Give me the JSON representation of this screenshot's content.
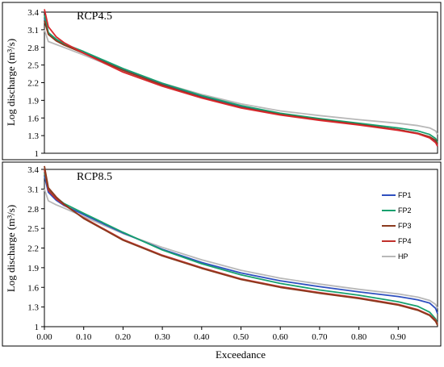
{
  "chart_data": [
    {
      "type": "line",
      "title": "RCP4.5",
      "xlabel": "",
      "ylabel": "Log discharge  (m³/s)",
      "xlim": [
        0,
        1
      ],
      "ylim": [
        1,
        3.4
      ],
      "yticks": [
        "1",
        "1.3",
        "1.6",
        "1.9",
        "2.2",
        "2.5",
        "2.8",
        "3.1",
        "3.4"
      ],
      "x": [
        0,
        0.01,
        0.03,
        0.05,
        0.1,
        0.2,
        0.3,
        0.4,
        0.5,
        0.6,
        0.7,
        0.8,
        0.9,
        0.95,
        0.98,
        0.995,
        1.0
      ],
      "series": [
        {
          "values": [
            3.3,
            3.05,
            2.93,
            2.85,
            2.71,
            2.42,
            2.17,
            1.96,
            1.79,
            1.66,
            1.57,
            1.49,
            1.4,
            1.34,
            1.27,
            1.2,
            1.13
          ],
          "color": "#2e4fbf"
        },
        {
          "values": [
            3.35,
            3.05,
            2.94,
            2.86,
            2.73,
            2.44,
            2.19,
            1.98,
            1.81,
            1.68,
            1.59,
            1.51,
            1.43,
            1.38,
            1.32,
            1.25,
            1.18
          ],
          "color": "#18a06e"
        },
        {
          "values": [
            3.45,
            3.15,
            2.98,
            2.88,
            2.7,
            2.38,
            2.14,
            1.94,
            1.77,
            1.65,
            1.56,
            1.48,
            1.39,
            1.33,
            1.26,
            1.18,
            1.12
          ],
          "color": "#d9282d"
        },
        {
          "values": [
            3.25,
            3.02,
            2.91,
            2.84,
            2.7,
            2.41,
            2.16,
            1.95,
            1.78,
            1.66,
            1.57,
            1.49,
            1.4,
            1.34,
            1.28,
            1.22,
            1.15
          ],
          "color": "#8b3a1e"
        },
        {
          "values": [
            3.1,
            2.9,
            2.85,
            2.8,
            2.67,
            2.4,
            2.19,
            2.0,
            1.84,
            1.72,
            1.64,
            1.57,
            1.51,
            1.47,
            1.43,
            1.38,
            1.32
          ],
          "color": "#b8b8b8"
        }
      ]
    },
    {
      "type": "line",
      "title": "RCP8.5",
      "xlabel": "Exceedance",
      "ylabel": "Log discharge  (m³/s)",
      "xlim": [
        0,
        1
      ],
      "ylim": [
        1,
        3.4
      ],
      "yticks": [
        "1",
        "1.3",
        "1.6",
        "1.9",
        "2.2",
        "2.5",
        "2.8",
        "3.1",
        "3.4"
      ],
      "xticks": [
        "0.00",
        "0.10",
        "0.20",
        "0.30",
        "0.40",
        "0.50",
        "0.60",
        "0.70",
        "0.80",
        "0.90"
      ],
      "legend_position": "right",
      "x": [
        0,
        0.01,
        0.03,
        0.05,
        0.1,
        0.2,
        0.3,
        0.4,
        0.5,
        0.6,
        0.7,
        0.8,
        0.9,
        0.95,
        0.98,
        0.995,
        1.0
      ],
      "series": [
        {
          "name": "FP1",
          "values": [
            3.3,
            3.05,
            2.93,
            2.85,
            2.71,
            2.43,
            2.18,
            1.98,
            1.82,
            1.7,
            1.61,
            1.53,
            1.46,
            1.41,
            1.36,
            1.28,
            1.2
          ],
          "color": "#2e4fbf"
        },
        {
          "name": "FP2",
          "values": [
            3.35,
            3.1,
            2.97,
            2.88,
            2.73,
            2.44,
            2.17,
            1.96,
            1.79,
            1.66,
            1.56,
            1.48,
            1.38,
            1.31,
            1.22,
            1.12,
            1.05
          ],
          "color": "#18a06e"
        },
        {
          "name": "FP3",
          "values": [
            3.45,
            3.12,
            2.98,
            2.87,
            2.65,
            2.32,
            2.08,
            1.89,
            1.72,
            1.6,
            1.51,
            1.43,
            1.33,
            1.25,
            1.17,
            1.08,
            1.02
          ],
          "color": "#8b3a1e"
        },
        {
          "name": "FP4",
          "values": [
            3.4,
            3.08,
            2.95,
            2.86,
            2.66,
            2.33,
            2.09,
            1.9,
            1.73,
            1.61,
            1.52,
            1.44,
            1.34,
            1.26,
            1.18,
            1.1,
            1.04
          ],
          "color": "#c0302b"
        },
        {
          "name": "HP",
          "values": [
            3.1,
            2.92,
            2.86,
            2.81,
            2.68,
            2.42,
            2.21,
            2.02,
            1.86,
            1.74,
            1.65,
            1.57,
            1.5,
            1.45,
            1.4,
            1.34,
            1.28
          ],
          "color": "#b8b8b8"
        }
      ]
    }
  ]
}
